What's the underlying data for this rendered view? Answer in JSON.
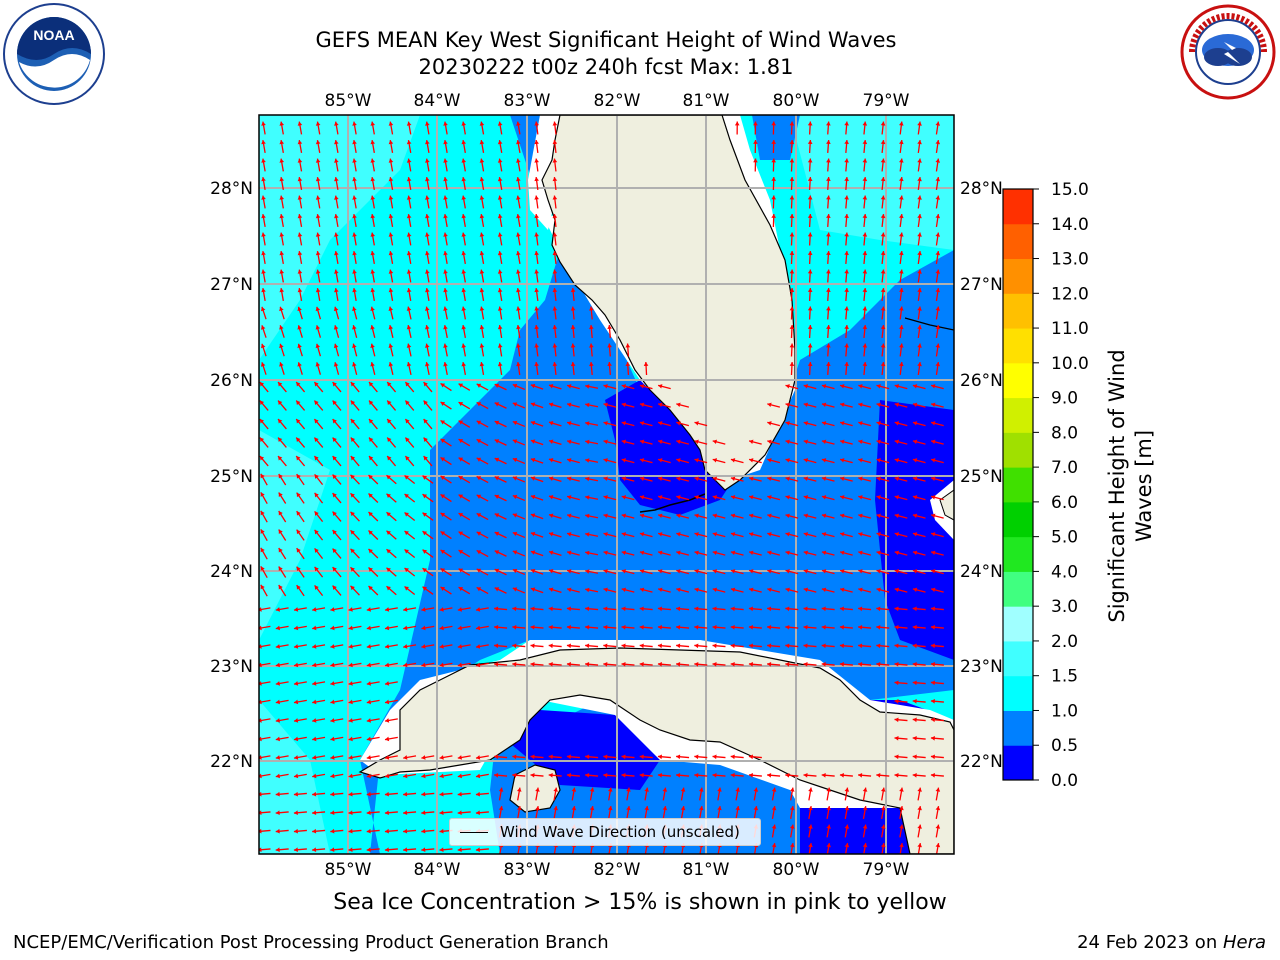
{
  "header": {
    "title_line1": "GEFS MEAN Key West Significant Height of Wind Waves",
    "title_line2": "20230222 t00z 240h fcst   Max: 1.81"
  },
  "logos": {
    "left": {
      "icon": "noaa-logo",
      "text": "NOAA",
      "ring_text": "NATIONAL OCEANIC AND ATMOSPHERIC ADMINISTRATION · U.S. DEPARTMENT OF COMMERCE"
    },
    "right": {
      "icon": "nws-logo",
      "ring_text": "NATIONAL WEATHER SERVICE"
    }
  },
  "map": {
    "lon_labels": [
      "85°W",
      "84°W",
      "83°W",
      "82°W",
      "81°W",
      "80°W",
      "79°W"
    ],
    "lat_labels": [
      "28°N",
      "27°N",
      "26°N",
      "25°N",
      "24°N",
      "23°N",
      "22°N"
    ],
    "legend_label": "Wind Wave Direction (unscaled)",
    "arrow_color": "#ff0000",
    "land_color": "#efefdf"
  },
  "colorbar": {
    "label": "Significant Height of Wind Waves [m]",
    "label_line1": "Significant Height of Wind",
    "label_line2": "Waves [m]",
    "ticks": [
      "15.0",
      "14.0",
      "13.0",
      "12.0",
      "11.0",
      "10.0",
      "9.0",
      "8.0",
      "7.0",
      "6.0",
      "5.0",
      "4.0",
      "3.0",
      "2.0",
      "1.5",
      "1.0",
      "0.5",
      "0.0"
    ],
    "colors_bottom_to_top": [
      "#0000ff",
      "#0080ff",
      "#00ffff",
      "#40ffff",
      "#a0ffff",
      "#40ff80",
      "#20e820",
      "#00d000",
      "#40e000",
      "#a0e000",
      "#d0f000",
      "#ffff00",
      "#ffe000",
      "#ffc000",
      "#ff9000",
      "#ff6000",
      "#ff3000",
      "#ff0000"
    ]
  },
  "notes": {
    "ice": "Sea Ice Concentration > 15% is shown in pink to yellow"
  },
  "footer": {
    "left": "NCEP/EMC/Verification Post Processing Product Generation Branch",
    "date": "24 Feb 2023 on ",
    "machine": "Hera"
  }
}
